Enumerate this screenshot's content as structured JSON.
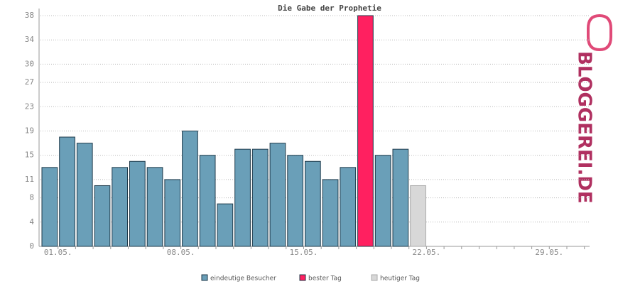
{
  "chart_data": {
    "type": "bar",
    "title": "Die Gabe der Prophetie",
    "categories": [
      "01.05.",
      null,
      null,
      null,
      null,
      null,
      null,
      "08.05.",
      null,
      null,
      null,
      null,
      null,
      null,
      "15.05.",
      null,
      null,
      null,
      null,
      null,
      null,
      "22.05.",
      null,
      null,
      null,
      null,
      null,
      null,
      "29.05.",
      null,
      null
    ],
    "series": [
      {
        "name": "eindeutige Besucher",
        "color": "#6a9fb8",
        "values": [
          13,
          18,
          17,
          10,
          13,
          14,
          13,
          11,
          19,
          15,
          7,
          16,
          16,
          17,
          15,
          14,
          11,
          13,
          null,
          15,
          16,
          null,
          null,
          null,
          null,
          null,
          null,
          null,
          null,
          null,
          null
        ]
      },
      {
        "name": "bester Tag",
        "color": "#ff2060",
        "values": [
          null,
          null,
          null,
          null,
          null,
          null,
          null,
          null,
          null,
          null,
          null,
          null,
          null,
          null,
          null,
          null,
          null,
          null,
          38,
          null,
          null,
          null,
          null,
          null,
          null,
          null,
          null,
          null,
          null,
          null,
          null
        ]
      },
      {
        "name": "heutiger Tag",
        "color": "#d8d8d8",
        "values": [
          null,
          null,
          null,
          null,
          null,
          null,
          null,
          null,
          null,
          null,
          null,
          null,
          null,
          null,
          null,
          null,
          null,
          null,
          null,
          null,
          null,
          10,
          null,
          null,
          null,
          null,
          null,
          null,
          null,
          null,
          null
        ]
      }
    ],
    "ylim": [
      0,
      38
    ],
    "yticks": [
      0,
      4,
      8,
      11,
      15,
      19,
      23,
      27,
      30,
      34,
      38
    ],
    "grid": true
  },
  "logo": "BLOGGEREI.DE"
}
